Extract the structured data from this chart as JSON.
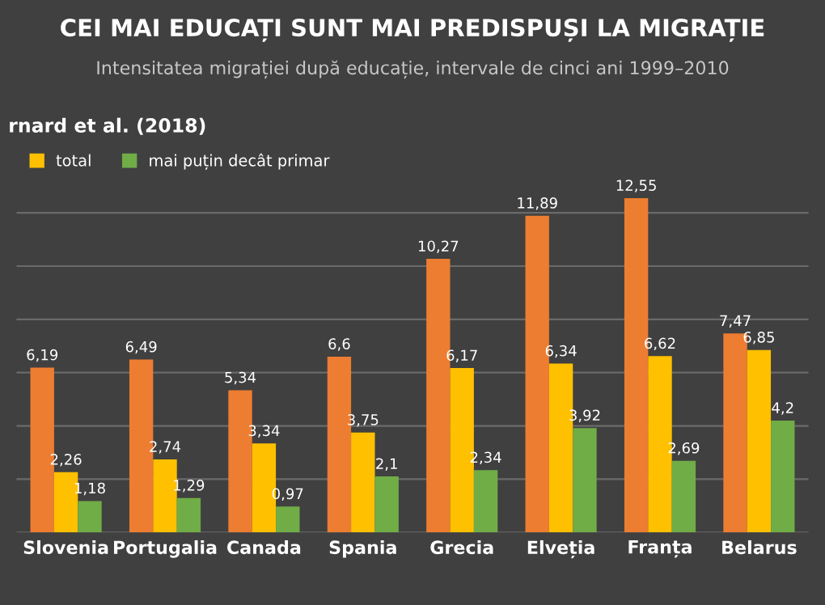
{
  "chart_data": {
    "type": "bar",
    "title": "CEI MAI EDUCAȚI SUNT MAI PREDISPUȘI LA MIGRAȚIE",
    "subtitle": "Intensitatea migrației după educație, intervale de cinci ani 1999–2010",
    "annotations": [
      "rnard et al. (2018)"
    ],
    "categories": [
      "Slovenia",
      "Portugalia",
      "Canada",
      "Spania",
      "Grecia",
      "Elveția",
      "Franța",
      "Belarus"
    ],
    "series": [
      {
        "color": "#ed7d31",
        "values": [
          6.19,
          6.49,
          5.34,
          6.6,
          10.27,
          11.89,
          12.55,
          7.47
        ],
        "value_labels": [
          "6,19",
          "6,49",
          "5,34",
          "6,6",
          "10,27",
          "11,89",
          "12,55",
          "7,47"
        ]
      },
      {
        "name": "total",
        "color": "#ffc000",
        "values": [
          2.26,
          2.74,
          3.34,
          3.75,
          6.17,
          6.34,
          6.62,
          6.85
        ],
        "value_labels": [
          "2,26",
          "2,74",
          "3,34",
          "3,75",
          "6,17",
          "6,34",
          "6,62",
          "6,85"
        ]
      },
      {
        "name": "mai puțin decât primar",
        "color": "#70ad47",
        "values": [
          1.18,
          1.29,
          0.97,
          2.1,
          2.34,
          3.92,
          2.69,
          4.2
        ],
        "value_labels": [
          "1,18",
          "1,29",
          "0,97",
          "2,1",
          "2,34",
          "3,92",
          "2,69",
          "4,2"
        ]
      }
    ],
    "grid": "y",
    "legend": "top left"
  }
}
